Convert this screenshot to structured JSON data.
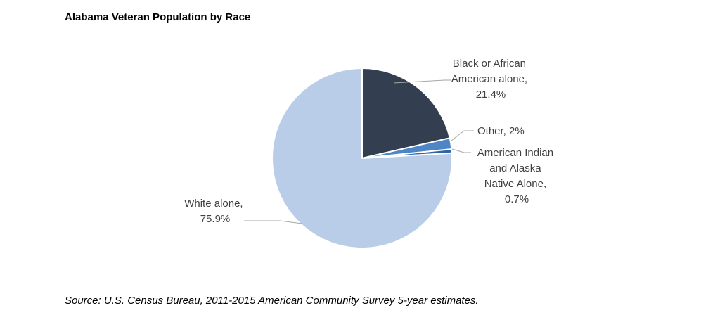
{
  "title": "Alabama Veteran Population by Race",
  "source": "Source: U.S. Census Bureau, 2011-2015 American Community Survey 5-year estimates.",
  "chart_data": {
    "type": "pie",
    "title": "Alabama Veteran Population by Race",
    "start_angle_deg": 0,
    "direction": "clockwise",
    "legend": "none",
    "slices": [
      {
        "key": "black",
        "label_lines": [
          "Black or African",
          "American alone,",
          "21.4%"
        ],
        "value": 21.4,
        "color": "#333F50"
      },
      {
        "key": "other",
        "label_lines": [
          "Other, 2%"
        ],
        "value": 2.0,
        "color": "#4E85C5"
      },
      {
        "key": "aian",
        "label_lines": [
          "American Indian",
          "and Alaska",
          "Native Alone,",
          "0.7%"
        ],
        "value": 0.7,
        "color": "#2E64A8"
      },
      {
        "key": "white",
        "label_lines": [
          "White alone,",
          "75.9%"
        ],
        "value": 75.9,
        "color": "#B9CDE8"
      }
    ]
  }
}
